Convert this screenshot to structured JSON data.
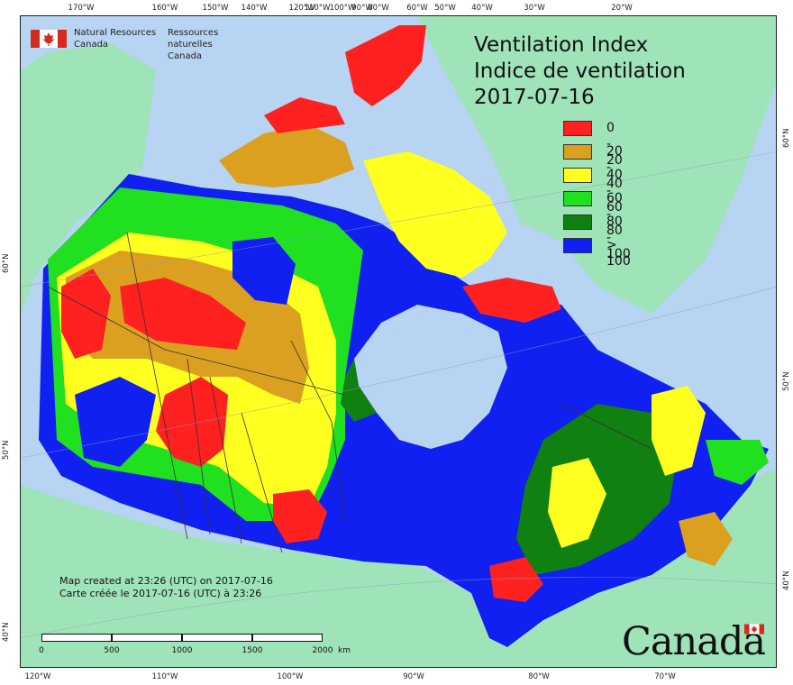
{
  "map": {
    "title_en": "Ventilation Index",
    "title_fr": "Indice de ventilation",
    "date": "2017-07-16",
    "agency_en_line1": "Natural Resources",
    "agency_en_line2": "Canada",
    "agency_fr_line1": "Ressources naturelles",
    "agency_fr_line2": "Canada",
    "credit_en": "Map created at 23:26 (UTC) on 2017-07-16",
    "credit_fr": "Carte créée le 2017-07-16 (UTC) à 23:26",
    "wordmark": "Canada",
    "colors": {
      "water": "#b7d4f2",
      "land_outside": "#9fe3b8",
      "c0_20": "#ff2020",
      "c20_40": "#dca020",
      "c40_60": "#ffff20",
      "c60_80": "#20e020",
      "c80_100": "#108010",
      "c100": "#1020f0"
    }
  },
  "legend": {
    "items": [
      {
        "label": "0 - 20",
        "color": "#ff2020"
      },
      {
        "label": "20 - 40",
        "color": "#dca020"
      },
      {
        "label": "40 - 60",
        "color": "#ffff20"
      },
      {
        "label": "60 - 80",
        "color": "#20e020"
      },
      {
        "label": "80 - 100",
        "color": "#108010"
      },
      {
        "label": "> 100",
        "color": "#1020f0"
      }
    ]
  },
  "graticule": {
    "top_labels": [
      "170°W",
      "160°W",
      "150°W",
      "140°W",
      "120°W",
      "110°W",
      "100°W",
      "90°W",
      "80°W",
      "60°W",
      "50°W",
      "40°W",
      "30°W",
      "20°W"
    ],
    "bottom_labels": [
      "120°W",
      "110°W",
      "100°W",
      "90°W",
      "80°W",
      "70°W"
    ],
    "left_labels": [
      "60°N",
      "50°N",
      "40°N"
    ],
    "right_labels": [
      "60°N",
      "50°N",
      "40°N"
    ]
  },
  "scalebar": {
    "labels": [
      "0",
      "500",
      "1000",
      "1500",
      "2000"
    ],
    "unit": "km"
  }
}
